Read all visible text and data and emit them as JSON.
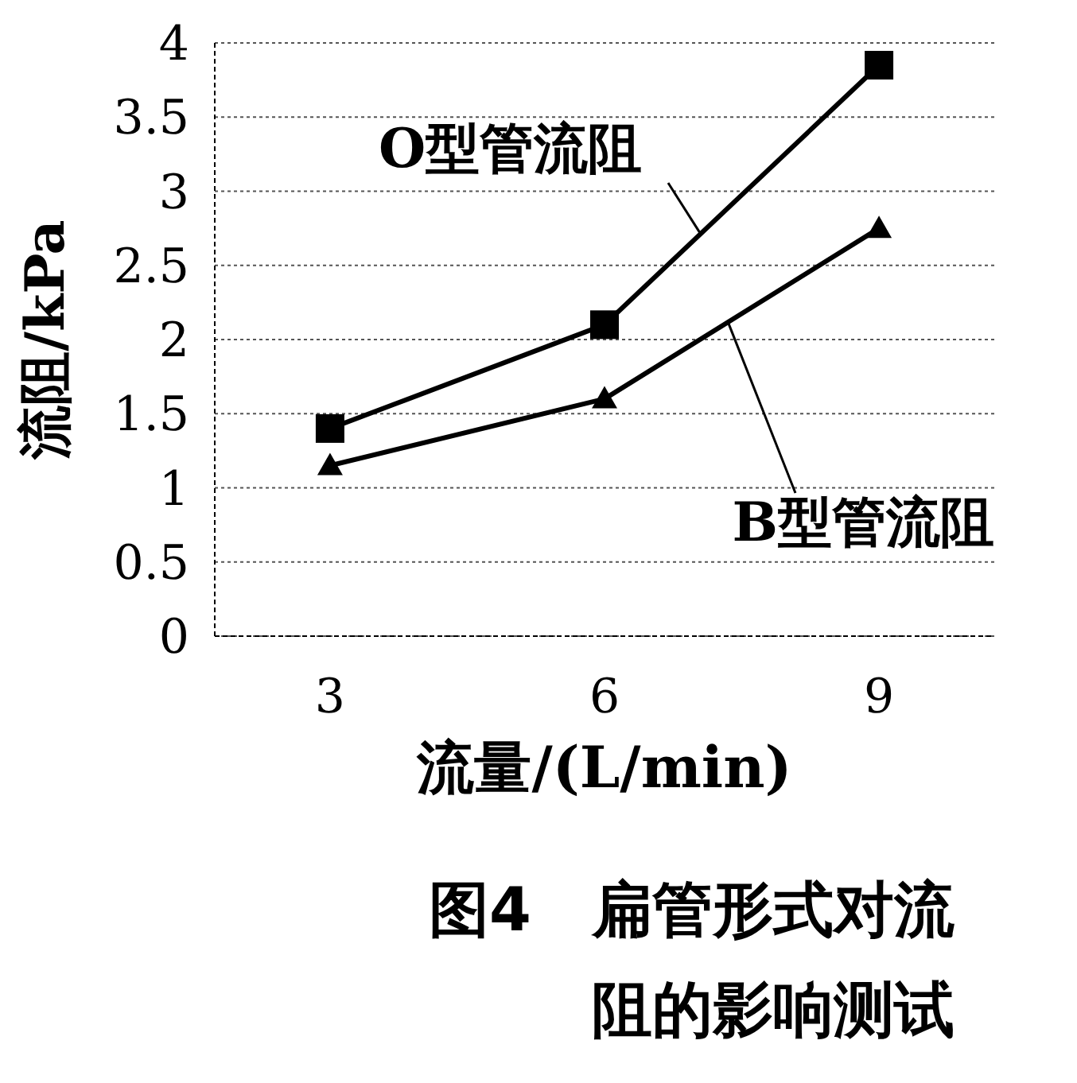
{
  "chart_data": {
    "type": "line",
    "xlabel": "流量/(L/min)",
    "ylabel": "流阻/kPa",
    "categories": [
      "3",
      "6",
      "9"
    ],
    "ylim": [
      0,
      4
    ],
    "yticks": [
      0,
      0.5,
      1,
      1.5,
      2,
      2.5,
      3,
      3.5,
      4
    ],
    "grid": "y",
    "line_style": "solid",
    "series": [
      {
        "name": "O型管流阻",
        "color": "#000000",
        "marker": "square",
        "values": [
          1.4,
          2.1,
          3.85
        ]
      },
      {
        "name": "B型管流阻",
        "color": "#000000",
        "marker": "triangle",
        "values": [
          1.15,
          1.6,
          2.75
        ]
      }
    ],
    "annotations": [
      "图4　扁管形式对流阻的影响测试"
    ]
  }
}
